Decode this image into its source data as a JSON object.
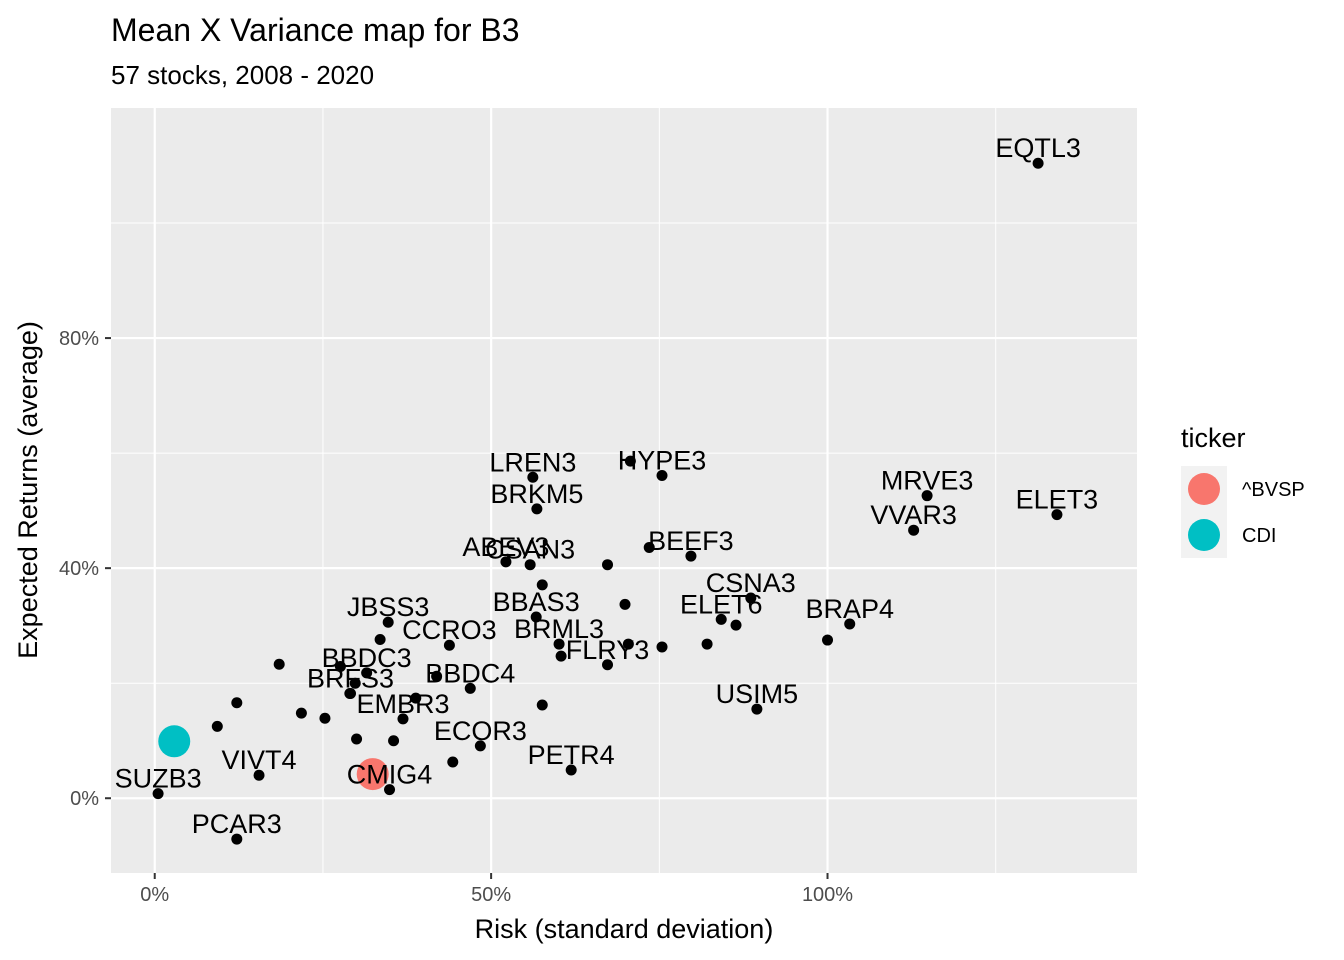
{
  "chart_data": {
    "type": "scatter",
    "title": "Mean X Variance map for B3",
    "subtitle": "57 stocks, 2008 - 2020",
    "xlabel": "Risk (standard deviation)",
    "ylabel": "Expected Returns (average)",
    "xlim": [
      -0.065,
      1.46
    ],
    "ylim": [
      -0.13,
      1.2
    ],
    "x_ticks": [
      0,
      0.5,
      1.0
    ],
    "x_tick_labels": [
      "0%",
      "50%",
      "100%"
    ],
    "y_ticks": [
      0,
      0.4,
      0.8
    ],
    "y_tick_labels": [
      "0%",
      "40%",
      "80%"
    ],
    "grid": true,
    "legend": {
      "title": "ticker",
      "placement": "right",
      "entries": [
        {
          "name": "^BVSP",
          "color": "#F8766D"
        },
        {
          "name": "CDI",
          "color": "#00BFC4"
        }
      ]
    },
    "labeled_points": [
      {
        "label": "EQTL3",
        "x": 1.313,
        "y": 1.104
      },
      {
        "label": "ELET3",
        "x": 1.341,
        "y": 0.493
      },
      {
        "label": "MRVE3",
        "x": 1.148,
        "y": 0.526
      },
      {
        "label": "VVAR3",
        "x": 1.128,
        "y": 0.466
      },
      {
        "label": "LREN3",
        "x": 0.562,
        "y": 0.558
      },
      {
        "label": "HYPE3",
        "x": 0.754,
        "y": 0.561
      },
      {
        "label": "BRKM5",
        "x": 0.568,
        "y": 0.503
      },
      {
        "label": "BEEF3",
        "x": 0.797,
        "y": 0.421
      },
      {
        "label": "ABEV3",
        "x": 0.522,
        "y": 0.411
      },
      {
        "label": "CSAN3",
        "x": 0.558,
        "y": 0.406
      },
      {
        "label": "CSNA3",
        "x": 0.886,
        "y": 0.348
      },
      {
        "label": "BRAP4",
        "x": 1.033,
        "y": 0.303
      },
      {
        "label": "BBAS3",
        "x": 0.567,
        "y": 0.315
      },
      {
        "label": "JBSS3",
        "x": 0.347,
        "y": 0.306
      },
      {
        "label": "CCRO3",
        "x": 0.438,
        "y": 0.266
      },
      {
        "label": "BRML3",
        "x": 0.601,
        "y": 0.268
      },
      {
        "label": "ELET6",
        "x": 0.842,
        "y": 0.311
      },
      {
        "label": "BBDC3",
        "x": 0.315,
        "y": 0.218
      },
      {
        "label": "BBDC4",
        "x": 0.469,
        "y": 0.191
      },
      {
        "label": "FLRY3",
        "x": 0.673,
        "y": 0.232
      },
      {
        "label": "USIM5",
        "x": 0.895,
        "y": 0.155
      },
      {
        "label": "BRFS3",
        "x": 0.291,
        "y": 0.182
      },
      {
        "label": "EMBR3",
        "x": 0.369,
        "y": 0.138
      },
      {
        "label": "ECOR3",
        "x": 0.484,
        "y": 0.091
      },
      {
        "label": "PETR4",
        "x": 0.619,
        "y": 0.049
      },
      {
        "label": "VIVT4",
        "x": 0.155,
        "y": 0.04
      },
      {
        "label": "CMIG4",
        "x": 0.349,
        "y": 0.015
      },
      {
        "label": "SUZB3",
        "x": 0.005,
        "y": 0.008
      },
      {
        "label": "PCAR3",
        "x": 0.122,
        "y": -0.071
      }
    ],
    "unlabeled_points": [
      {
        "x": 0.707,
        "y": 0.586
      },
      {
        "x": 0.735,
        "y": 0.436
      },
      {
        "x": 0.673,
        "y": 0.406
      },
      {
        "x": 0.576,
        "y": 0.371
      },
      {
        "x": 0.699,
        "y": 0.337
      },
      {
        "x": 0.335,
        "y": 0.276
      },
      {
        "x": 0.185,
        "y": 0.233
      },
      {
        "x": 0.276,
        "y": 0.229
      },
      {
        "x": 0.704,
        "y": 0.268
      },
      {
        "x": 0.754,
        "y": 0.263
      },
      {
        "x": 0.821,
        "y": 0.268
      },
      {
        "x": 0.864,
        "y": 0.301
      },
      {
        "x": 1.0,
        "y": 0.275
      },
      {
        "x": 0.604,
        "y": 0.247
      },
      {
        "x": 0.298,
        "y": 0.2
      },
      {
        "x": 0.419,
        "y": 0.212
      },
      {
        "x": 0.388,
        "y": 0.174
      },
      {
        "x": 0.122,
        "y": 0.166
      },
      {
        "x": 0.29,
        "y": 0.182
      },
      {
        "x": 0.218,
        "y": 0.148
      },
      {
        "x": 0.253,
        "y": 0.139
      },
      {
        "x": 0.576,
        "y": 0.162
      },
      {
        "x": 0.093,
        "y": 0.125
      },
      {
        "x": 0.3,
        "y": 0.103
      },
      {
        "x": 0.355,
        "y": 0.1
      },
      {
        "x": 0.443,
        "y": 0.063
      }
    ],
    "series_points": [
      {
        "name": "^BVSP",
        "x": 0.324,
        "y": 0.042
      },
      {
        "name": "CDI",
        "x": 0.029,
        "y": 0.099
      }
    ]
  }
}
